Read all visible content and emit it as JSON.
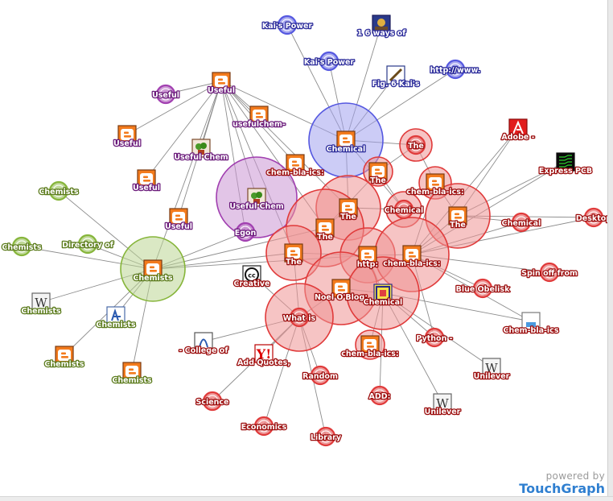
{
  "colors": {
    "blog_orange": "#f37b1d",
    "red": "#e03a3a",
    "purple": "#a13fb0",
    "green": "#86b53a",
    "blue": "#5558e0",
    "edge": "#8c8c8c"
  },
  "brand": {
    "top": "powered by",
    "name": "TouchGraph"
  },
  "nodes": [
    {
      "label": "Kai's Power",
      "color": "blue",
      "icon": "none"
    },
    {
      "label": "1 6 ways of",
      "color": "blue",
      "icon": "photo-icon"
    },
    {
      "label": "Kai's Power",
      "color": "blue",
      "icon": "none"
    },
    {
      "label": "Fig. 6 Kai's",
      "color": "blue",
      "icon": "pen-icon"
    },
    {
      "label": "http://www.",
      "color": "blue",
      "icon": "none"
    },
    {
      "label": "Chemical",
      "color": "blue",
      "icon": "blogger-icon"
    },
    {
      "label": "Useful",
      "color": "purple",
      "icon": "none"
    },
    {
      "label": "Useful",
      "color": "purple",
      "icon": "blogger-icon"
    },
    {
      "label": "usefulchem-",
      "color": "purple",
      "icon": "blogger-icon"
    },
    {
      "label": "Useful",
      "color": "purple",
      "icon": "blogger-icon"
    },
    {
      "label": "Useful Chem",
      "color": "purple",
      "icon": "plant-icon"
    },
    {
      "label": "Useful",
      "color": "purple",
      "icon": "blogger-icon"
    },
    {
      "label": "Useful",
      "color": "purple",
      "icon": "blogger-icon"
    },
    {
      "label": "Useful Chem",
      "color": "purple",
      "icon": "plant-icon"
    },
    {
      "label": "Egon",
      "color": "purple",
      "icon": "none"
    },
    {
      "label": "Chemists",
      "color": "green",
      "icon": "none"
    },
    {
      "label": "Chemists",
      "color": "green",
      "icon": "none"
    },
    {
      "label": "Directory of",
      "color": "green",
      "icon": "none"
    },
    {
      "label": "Chemists",
      "color": "green",
      "icon": "blogger-icon"
    },
    {
      "label": "Chemists",
      "color": "green",
      "icon": "wikipedia-icon"
    },
    {
      "label": "Chemists",
      "color": "green",
      "icon": "molecule-icon"
    },
    {
      "label": "Chemists",
      "color": "green",
      "icon": "blogger-icon"
    },
    {
      "label": "Chemists",
      "color": "green",
      "icon": "blogger-icon"
    },
    {
      "label": "chem-bla-ics:",
      "color": "red",
      "icon": "blogger-icon"
    },
    {
      "label": "The",
      "color": "red",
      "icon": "none"
    },
    {
      "label": "The",
      "color": "red",
      "icon": "blogger-icon"
    },
    {
      "label": "chem-bla-ics:",
      "color": "red",
      "icon": "blogger-icon"
    },
    {
      "label": "The",
      "color": "red",
      "icon": "blogger-icon"
    },
    {
      "label": "Chemical",
      "color": "red",
      "icon": "none"
    },
    {
      "label": "The",
      "color": "red",
      "icon": "blogger-icon"
    },
    {
      "label": "The",
      "color": "red",
      "icon": "blogger-icon"
    },
    {
      "label": "The",
      "color": "red",
      "icon": "blogger-icon"
    },
    {
      "label": "http:",
      "color": "red",
      "icon": "blogger-icon"
    },
    {
      "label": "chem-bla-ics:",
      "color": "red",
      "icon": "blogger-icon"
    },
    {
      "label": "Noel O'Blog:",
      "color": "red",
      "icon": "blogger-icon"
    },
    {
      "label": "Chemical",
      "color": "red",
      "icon": "sam-icon"
    },
    {
      "label": "What is",
      "color": "red",
      "icon": "none"
    },
    {
      "label": "chem-bla-ics:",
      "color": "red",
      "icon": "blogger-icon"
    },
    {
      "label": "Adobe -",
      "color": "red",
      "icon": "adobe-icon"
    },
    {
      "label": "Express PCB",
      "color": "red",
      "icon": "pcb-icon"
    },
    {
      "label": "Chemical",
      "color": "red",
      "icon": "none"
    },
    {
      "label": "Desktop",
      "color": "red",
      "icon": "none"
    },
    {
      "label": "Spin off from",
      "color": "red",
      "icon": "none"
    },
    {
      "label": "Blue Obelisk",
      "color": "red",
      "icon": "none"
    },
    {
      "label": "Chem-bla-ics",
      "color": "red",
      "icon": "flask-icon"
    },
    {
      "label": "Python -",
      "color": "red",
      "icon": "none"
    },
    {
      "label": "Unilever",
      "color": "red",
      "icon": "wikipedia-icon"
    },
    {
      "label": "Unilever",
      "color": "red",
      "icon": "wikipedia-icon"
    },
    {
      "label": "ADD:",
      "color": "red",
      "icon": "none"
    },
    {
      "label": "Creative",
      "color": "red",
      "icon": "cc-icon"
    },
    {
      "label": "- College of",
      "color": "red",
      "icon": "college-icon"
    },
    {
      "label": "Add Quotes,",
      "color": "red",
      "icon": "yahoo-icon"
    },
    {
      "label": "Random",
      "color": "red",
      "icon": "none"
    },
    {
      "label": "Science",
      "color": "red",
      "icon": "none"
    },
    {
      "label": "Economics",
      "color": "red",
      "icon": "none"
    },
    {
      "label": "Library",
      "color": "red",
      "icon": "none"
    }
  ],
  "edges": [
    [
      5,
      0
    ],
    [
      5,
      1
    ],
    [
      5,
      2
    ],
    [
      5,
      3
    ],
    [
      5,
      4
    ],
    [
      5,
      28
    ],
    [
      5,
      24
    ],
    [
      5,
      29
    ],
    [
      7,
      6
    ],
    [
      7,
      7
    ],
    [
      7,
      8
    ],
    [
      7,
      9
    ],
    [
      7,
      10
    ],
    [
      7,
      11
    ],
    [
      7,
      12
    ],
    [
      7,
      13
    ],
    [
      7,
      14
    ],
    [
      7,
      23
    ],
    [
      7,
      29
    ],
    [
      7,
      30
    ],
    [
      7,
      31
    ],
    [
      7,
      5
    ],
    [
      18,
      15
    ],
    [
      18,
      16
    ],
    [
      18,
      17
    ],
    [
      18,
      19
    ],
    [
      18,
      20
    ],
    [
      18,
      21
    ],
    [
      18,
      22
    ],
    [
      18,
      7
    ],
    [
      18,
      31
    ],
    [
      18,
      30
    ],
    [
      18,
      32
    ],
    [
      18,
      14
    ],
    [
      33,
      38
    ],
    [
      33,
      39
    ],
    [
      33,
      40
    ],
    [
      33,
      41
    ],
    [
      33,
      42
    ],
    [
      33,
      43
    ],
    [
      33,
      44
    ],
    [
      33,
      45
    ],
    [
      33,
      26
    ],
    [
      33,
      27
    ],
    [
      33,
      32
    ],
    [
      35,
      45
    ],
    [
      35,
      46
    ],
    [
      35,
      47
    ],
    [
      35,
      48
    ],
    [
      35,
      37
    ],
    [
      35,
      34
    ],
    [
      35,
      32
    ],
    [
      35,
      44
    ],
    [
      36,
      49
    ],
    [
      36,
      50
    ],
    [
      36,
      51
    ],
    [
      36,
      52
    ],
    [
      36,
      53
    ],
    [
      36,
      54
    ],
    [
      36,
      55
    ],
    [
      36,
      34
    ],
    [
      36,
      31
    ],
    [
      27,
      40
    ],
    [
      27,
      41
    ],
    [
      27,
      38
    ],
    [
      27,
      39
    ],
    [
      27,
      26
    ],
    [
      30,
      29
    ],
    [
      30,
      25
    ],
    [
      31,
      32
    ],
    [
      32,
      34
    ],
    [
      25,
      24
    ],
    [
      26,
      24
    ],
    [
      28,
      25
    ],
    [
      29,
      28
    ]
  ]
}
